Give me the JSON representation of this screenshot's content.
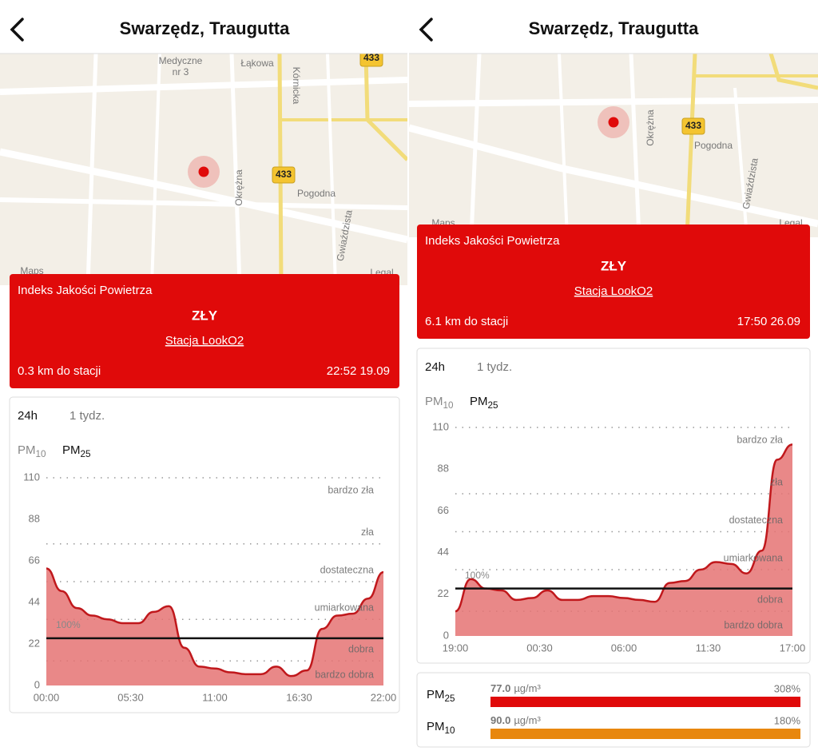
{
  "screens": [
    {
      "header": {
        "title": "Swarzędz, Traugutta"
      },
      "map": {
        "labels": [
          "Medyczne",
          "nr 3",
          "Łąkowa",
          "Kórnicka",
          "433",
          "433",
          "Okrężna",
          "Pogodna",
          "Gwiaździsta",
          "Maps",
          "Legal"
        ]
      },
      "aqi_card": {
        "title": "Indeks Jakości Powietrza",
        "level": "ZŁY",
        "station": "Stacja LookO2",
        "distance": "0.3 km do stacji",
        "time": "22:52 19.09"
      },
      "chart": {
        "type": "area",
        "tabs": [
          "24h",
          "1 tydz."
        ],
        "pollutants": [
          {
            "base": "PM",
            "sub": "10"
          },
          {
            "base": "PM",
            "sub": "25"
          }
        ],
        "x": [
          0,
          1,
          2,
          3,
          4,
          5,
          6,
          7,
          8,
          9,
          10,
          11,
          12,
          13,
          14,
          15,
          16,
          17,
          18,
          19,
          20,
          21,
          22
        ],
        "values": [
          62,
          50,
          41,
          37,
          35,
          33,
          33,
          39,
          42,
          20,
          10,
          9,
          7,
          6,
          6,
          10,
          5,
          8,
          30,
          37,
          38,
          46,
          60
        ],
        "xlim": [
          0,
          22
        ],
        "xticks": [
          {
            "value": 0,
            "label": "00:00"
          },
          {
            "value": 5.5,
            "label": "05:30"
          },
          {
            "value": 11,
            "label": "11:00"
          },
          {
            "value": 16.5,
            "label": "16:30"
          },
          {
            "value": 22,
            "label": "22:00"
          }
        ],
        "ylim": [
          0,
          110
        ],
        "yticks": [
          0,
          22,
          44,
          66,
          88,
          110
        ],
        "thresholds": [
          13,
          35,
          55,
          75,
          110
        ],
        "band_labels": [
          "bardzo dobra",
          "dobra",
          "umiarkowana",
          "dostateczna",
          "zła",
          "bardzo zła"
        ],
        "norm": {
          "value": 25,
          "label": "100%"
        },
        "fill_color": "#e57373",
        "line_color": "#c0181c"
      }
    },
    {
      "header": {
        "title": "Swarzędz, Traugutta"
      },
      "map": {
        "labels": [
          "433",
          "Pogodna",
          "Okrężna",
          "Gwiaździsta",
          "Maps",
          "Legal"
        ]
      },
      "aqi_card": {
        "title": "Indeks Jakości Powietrza",
        "level": "ZŁY",
        "station": "Stacja LookO2",
        "distance": "6.1 km do stacji",
        "time": "17:50 26.09"
      },
      "chart": {
        "type": "area",
        "tabs": [
          "24h",
          "1 tydz."
        ],
        "pollutants": [
          {
            "base": "PM",
            "sub": "10"
          },
          {
            "base": "PM",
            "sub": "25"
          }
        ],
        "x": [
          19,
          20,
          21,
          22,
          23,
          24,
          25,
          26,
          27,
          28,
          29,
          30,
          31,
          32,
          33,
          34,
          35,
          36,
          37,
          38,
          39,
          40,
          41
        ],
        "values": [
          13,
          30,
          25,
          24,
          19,
          20,
          24,
          19,
          19,
          21,
          21,
          20,
          19,
          18,
          28,
          29,
          35,
          39,
          38,
          33,
          45,
          93,
          101
        ],
        "xlim": [
          19,
          41
        ],
        "xticks": [
          {
            "value": 19,
            "label": "19:00"
          },
          {
            "value": 24.5,
            "label": "00:30"
          },
          {
            "value": 30,
            "label": "06:00"
          },
          {
            "value": 35.5,
            "label": "11:30"
          },
          {
            "value": 41,
            "label": "17:00"
          }
        ],
        "ylim": [
          0,
          110
        ],
        "yticks": [
          0,
          22,
          44,
          66,
          88,
          110
        ],
        "thresholds": [
          13,
          35,
          55,
          75,
          110
        ],
        "band_labels": [
          "bardzo dobra",
          "dobra",
          "umiarkowana",
          "dostateczna",
          "zła",
          "bardzo zła"
        ],
        "norm": {
          "value": 25,
          "label": "100%"
        },
        "fill_color": "#e57373",
        "line_color": "#c0181c"
      },
      "summary": [
        {
          "name": {
            "base": "PM",
            "sub": "25"
          },
          "value": "77.0",
          "unit": "µg/m³",
          "percent": "308%",
          "color": "#e00a0a"
        },
        {
          "name": {
            "base": "PM",
            "sub": "10"
          },
          "value": "90.0",
          "unit": "µg/m³",
          "percent": "180%",
          "color": "#e8870e"
        }
      ]
    }
  ]
}
